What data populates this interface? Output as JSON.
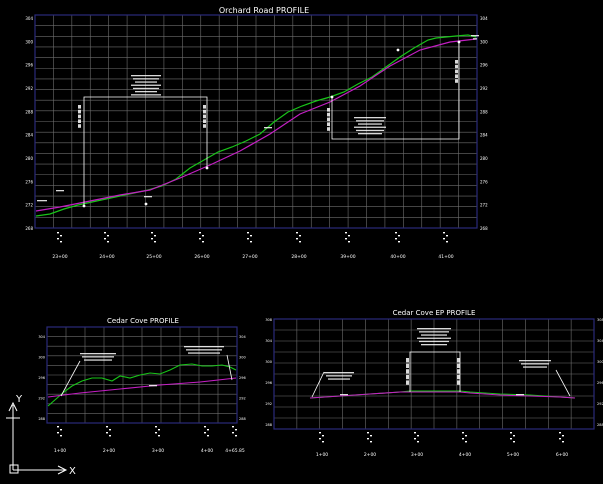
{
  "colors": {
    "background": "#000000",
    "grid": "#6e6e6e",
    "frame": "#2a2a7a",
    "existing_ground": "#19c519",
    "proposed_grade": "#c41fc4",
    "text": "#ffffff"
  },
  "ucs_icon": {
    "y_label": "Y",
    "x_label": "X",
    "icon": "ucs-axis-icon"
  },
  "views": {
    "orchard": {
      "title": "Orchard Road PROFILE",
      "stations": [
        "23+00",
        "24+00",
        "25+00",
        "26+00",
        "27+00",
        "28+00",
        "39+00",
        "40+00",
        "41+00"
      ],
      "left_elev": [
        "304",
        "300",
        "296",
        "292",
        "288",
        "284",
        "280",
        "276",
        "272",
        "268"
      ],
      "right_elev": [
        "304",
        "300",
        "296",
        "292",
        "288",
        "284",
        "280",
        "276",
        "272",
        "268"
      ]
    },
    "cedar": {
      "title": "Cedar Cove PROFILE",
      "stations": [
        "1+00",
        "2+00",
        "3+00",
        "4+00",
        "4+65.85"
      ],
      "left_elev": [
        "304",
        "300",
        "296",
        "292",
        "288"
      ],
      "right_elev": [
        "304",
        "300",
        "296",
        "292",
        "288"
      ]
    },
    "cedar_ep": {
      "title": "Cedar Cove EP PROFILE",
      "stations": [
        "1+00",
        "2+00",
        "3+00",
        "4+00",
        "5+00",
        "6+00"
      ],
      "left_elev": [
        "308",
        "304",
        "300",
        "296",
        "292",
        "288"
      ],
      "right_elev": [
        "308",
        "304",
        "300",
        "296",
        "292",
        "288"
      ]
    }
  }
}
